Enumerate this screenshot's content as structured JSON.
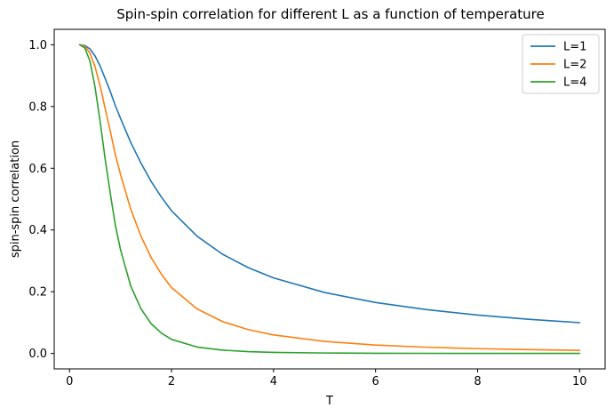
{
  "chart_data": {
    "type": "line",
    "title": "Spin-spin correlation for different L as a function of temperature",
    "xlabel": "T",
    "ylabel": "spin-spin correlation",
    "xlim": [
      -0.3,
      10.5
    ],
    "ylim": [
      -0.05,
      1.05
    ],
    "xticks": [
      0,
      2,
      4,
      6,
      8,
      10
    ],
    "yticks": [
      0.0,
      0.2,
      0.4,
      0.6,
      0.8,
      1.0
    ],
    "xtick_labels": [
      "0",
      "2",
      "4",
      "6",
      "8",
      "10"
    ],
    "ytick_labels": [
      "0.0",
      "0.2",
      "0.4",
      "0.6",
      "0.8",
      "1.0"
    ],
    "grid": false,
    "legend_position": "top-right",
    "x": [
      0.2,
      0.3,
      0.4,
      0.5,
      0.6,
      0.7,
      0.8,
      0.9,
      1.0,
      1.2,
      1.4,
      1.6,
      1.8,
      2.0,
      2.5,
      3.0,
      3.5,
      4.0,
      5.0,
      6.0,
      7.0,
      8.0,
      9.0,
      10.0
    ],
    "series": [
      {
        "name": "L=1",
        "color": "#1f77b4",
        "values": [
          1.0,
          0.9975,
          0.9866,
          0.964,
          0.9311,
          0.8904,
          0.8483,
          0.802,
          0.7616,
          0.6838,
          0.6169,
          0.5574,
          0.507,
          0.4621,
          0.3799,
          0.3215,
          0.2783,
          0.2449,
          0.1974,
          0.1651,
          0.142,
          0.1244,
          0.1107,
          0.0997
        ]
      },
      {
        "name": "L=2",
        "color": "#ff7f0e",
        "values": [
          1.0,
          0.995,
          0.9733,
          0.9293,
          0.867,
          0.7928,
          0.7196,
          0.6432,
          0.58,
          0.4675,
          0.3805,
          0.3107,
          0.2571,
          0.2135,
          0.1443,
          0.1034,
          0.0774,
          0.06,
          0.039,
          0.0273,
          0.0202,
          0.0155,
          0.0123,
          0.0099
        ]
      },
      {
        "name": "L=4",
        "color": "#2ca02c",
        "values": [
          1.0,
          0.99,
          0.9474,
          0.8636,
          0.7516,
          0.6285,
          0.5179,
          0.4137,
          0.3364,
          0.2185,
          0.1448,
          0.0965,
          0.0661,
          0.0456,
          0.0208,
          0.0107,
          0.006,
          0.0036,
          0.0015,
          0.0007,
          0.0004,
          0.0002,
          0.0001,
          0.0001
        ]
      }
    ]
  }
}
